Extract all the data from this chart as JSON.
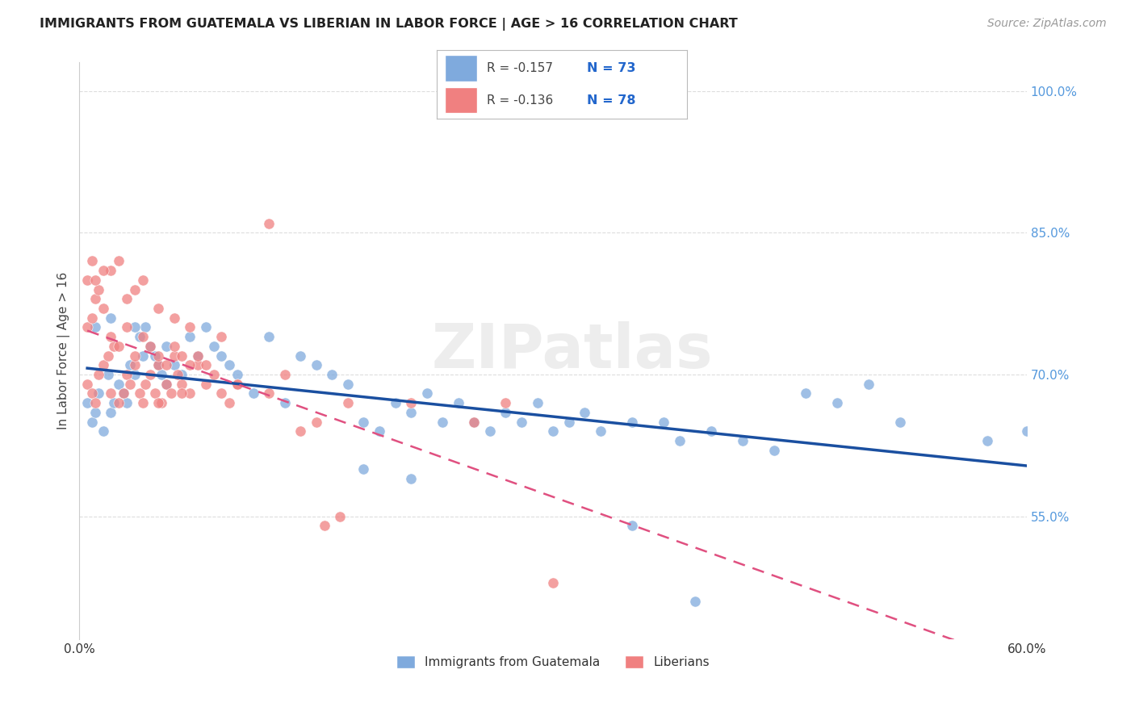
{
  "title": "IMMIGRANTS FROM GUATEMALA VS LIBERIAN IN LABOR FORCE | AGE > 16 CORRELATION CHART",
  "source": "Source: ZipAtlas.com",
  "ylabel": "In Labor Force | Age > 16",
  "xlim": [
    0.0,
    0.6
  ],
  "ylim": [
    0.42,
    1.03
  ],
  "yticks_right": [
    0.55,
    0.7,
    0.85,
    1.0
  ],
  "yticklabels_right": [
    "55.0%",
    "70.0%",
    "85.0%",
    "100.0%"
  ],
  "legend_label1": "Immigrants from Guatemala",
  "legend_label2": "Liberians",
  "R1": -0.157,
  "N1": 73,
  "R2": -0.136,
  "N2": 78,
  "color_blue": "#7faadd",
  "color_pink": "#f08080",
  "color_line_blue": "#1a4fa0",
  "color_line_pink": "#e05080",
  "watermark": "ZIPatlas",
  "guatemala_x": [
    0.005,
    0.008,
    0.01,
    0.012,
    0.015,
    0.018,
    0.02,
    0.022,
    0.025,
    0.028,
    0.03,
    0.032,
    0.035,
    0.038,
    0.04,
    0.042,
    0.045,
    0.048,
    0.05,
    0.052,
    0.055,
    0.06,
    0.065,
    0.07,
    0.075,
    0.08,
    0.085,
    0.09,
    0.095,
    0.1,
    0.11,
    0.12,
    0.13,
    0.14,
    0.15,
    0.16,
    0.17,
    0.18,
    0.19,
    0.2,
    0.21,
    0.22,
    0.23,
    0.24,
    0.25,
    0.26,
    0.27,
    0.28,
    0.29,
    0.3,
    0.31,
    0.32,
    0.33,
    0.35,
    0.37,
    0.38,
    0.4,
    0.42,
    0.44,
    0.46,
    0.48,
    0.5,
    0.52,
    0.575,
    0.01,
    0.02,
    0.035,
    0.055,
    0.18,
    0.21,
    0.35,
    0.39,
    0.6
  ],
  "guatemala_y": [
    0.67,
    0.65,
    0.66,
    0.68,
    0.64,
    0.7,
    0.66,
    0.67,
    0.69,
    0.68,
    0.67,
    0.71,
    0.7,
    0.74,
    0.72,
    0.75,
    0.73,
    0.72,
    0.71,
    0.7,
    0.69,
    0.71,
    0.7,
    0.74,
    0.72,
    0.75,
    0.73,
    0.72,
    0.71,
    0.7,
    0.68,
    0.74,
    0.67,
    0.72,
    0.71,
    0.7,
    0.69,
    0.65,
    0.64,
    0.67,
    0.66,
    0.68,
    0.65,
    0.67,
    0.65,
    0.64,
    0.66,
    0.65,
    0.67,
    0.64,
    0.65,
    0.66,
    0.64,
    0.65,
    0.65,
    0.63,
    0.64,
    0.63,
    0.62,
    0.68,
    0.67,
    0.69,
    0.65,
    0.63,
    0.75,
    0.76,
    0.75,
    0.73,
    0.6,
    0.59,
    0.54,
    0.46,
    0.64
  ],
  "liberia_x": [
    0.005,
    0.008,
    0.01,
    0.012,
    0.015,
    0.018,
    0.02,
    0.022,
    0.025,
    0.028,
    0.03,
    0.032,
    0.035,
    0.038,
    0.04,
    0.042,
    0.045,
    0.048,
    0.05,
    0.052,
    0.055,
    0.058,
    0.06,
    0.062,
    0.065,
    0.07,
    0.075,
    0.08,
    0.085,
    0.09,
    0.095,
    0.1,
    0.005,
    0.008,
    0.01,
    0.015,
    0.02,
    0.025,
    0.03,
    0.035,
    0.04,
    0.045,
    0.05,
    0.055,
    0.06,
    0.065,
    0.07,
    0.075,
    0.08,
    0.1,
    0.12,
    0.13,
    0.005,
    0.008,
    0.012,
    0.02,
    0.03,
    0.04,
    0.05,
    0.06,
    0.07,
    0.09,
    0.14,
    0.15,
    0.165,
    0.17,
    0.21,
    0.25,
    0.27,
    0.3,
    0.12,
    0.155,
    0.05,
    0.065,
    0.025,
    0.035,
    0.015,
    0.01
  ],
  "liberia_y": [
    0.69,
    0.68,
    0.67,
    0.7,
    0.71,
    0.72,
    0.68,
    0.73,
    0.67,
    0.68,
    0.7,
    0.69,
    0.71,
    0.68,
    0.67,
    0.69,
    0.7,
    0.68,
    0.71,
    0.67,
    0.69,
    0.68,
    0.72,
    0.7,
    0.69,
    0.68,
    0.71,
    0.69,
    0.7,
    0.68,
    0.67,
    0.69,
    0.75,
    0.76,
    0.78,
    0.77,
    0.74,
    0.73,
    0.75,
    0.72,
    0.74,
    0.73,
    0.72,
    0.71,
    0.73,
    0.72,
    0.71,
    0.72,
    0.71,
    0.69,
    0.68,
    0.7,
    0.8,
    0.82,
    0.79,
    0.81,
    0.78,
    0.8,
    0.77,
    0.76,
    0.75,
    0.74,
    0.64,
    0.65,
    0.55,
    0.67,
    0.67,
    0.65,
    0.67,
    0.48,
    0.86,
    0.54,
    0.67,
    0.68,
    0.82,
    0.79,
    0.81,
    0.8
  ],
  "grid_color": "#dddddd",
  "bg_color": "#ffffff"
}
